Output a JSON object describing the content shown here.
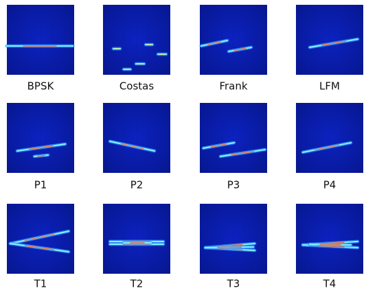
{
  "panels": [
    {
      "label": "BPSK"
    },
    {
      "label": "Costas"
    },
    {
      "label": "Frank"
    },
    {
      "label": "LFM"
    },
    {
      "label": "P1"
    },
    {
      "label": "P2"
    },
    {
      "label": "P3"
    },
    {
      "label": "P4"
    },
    {
      "label": "T1"
    },
    {
      "label": "T2"
    },
    {
      "label": "T3"
    },
    {
      "label": "T4"
    }
  ]
}
